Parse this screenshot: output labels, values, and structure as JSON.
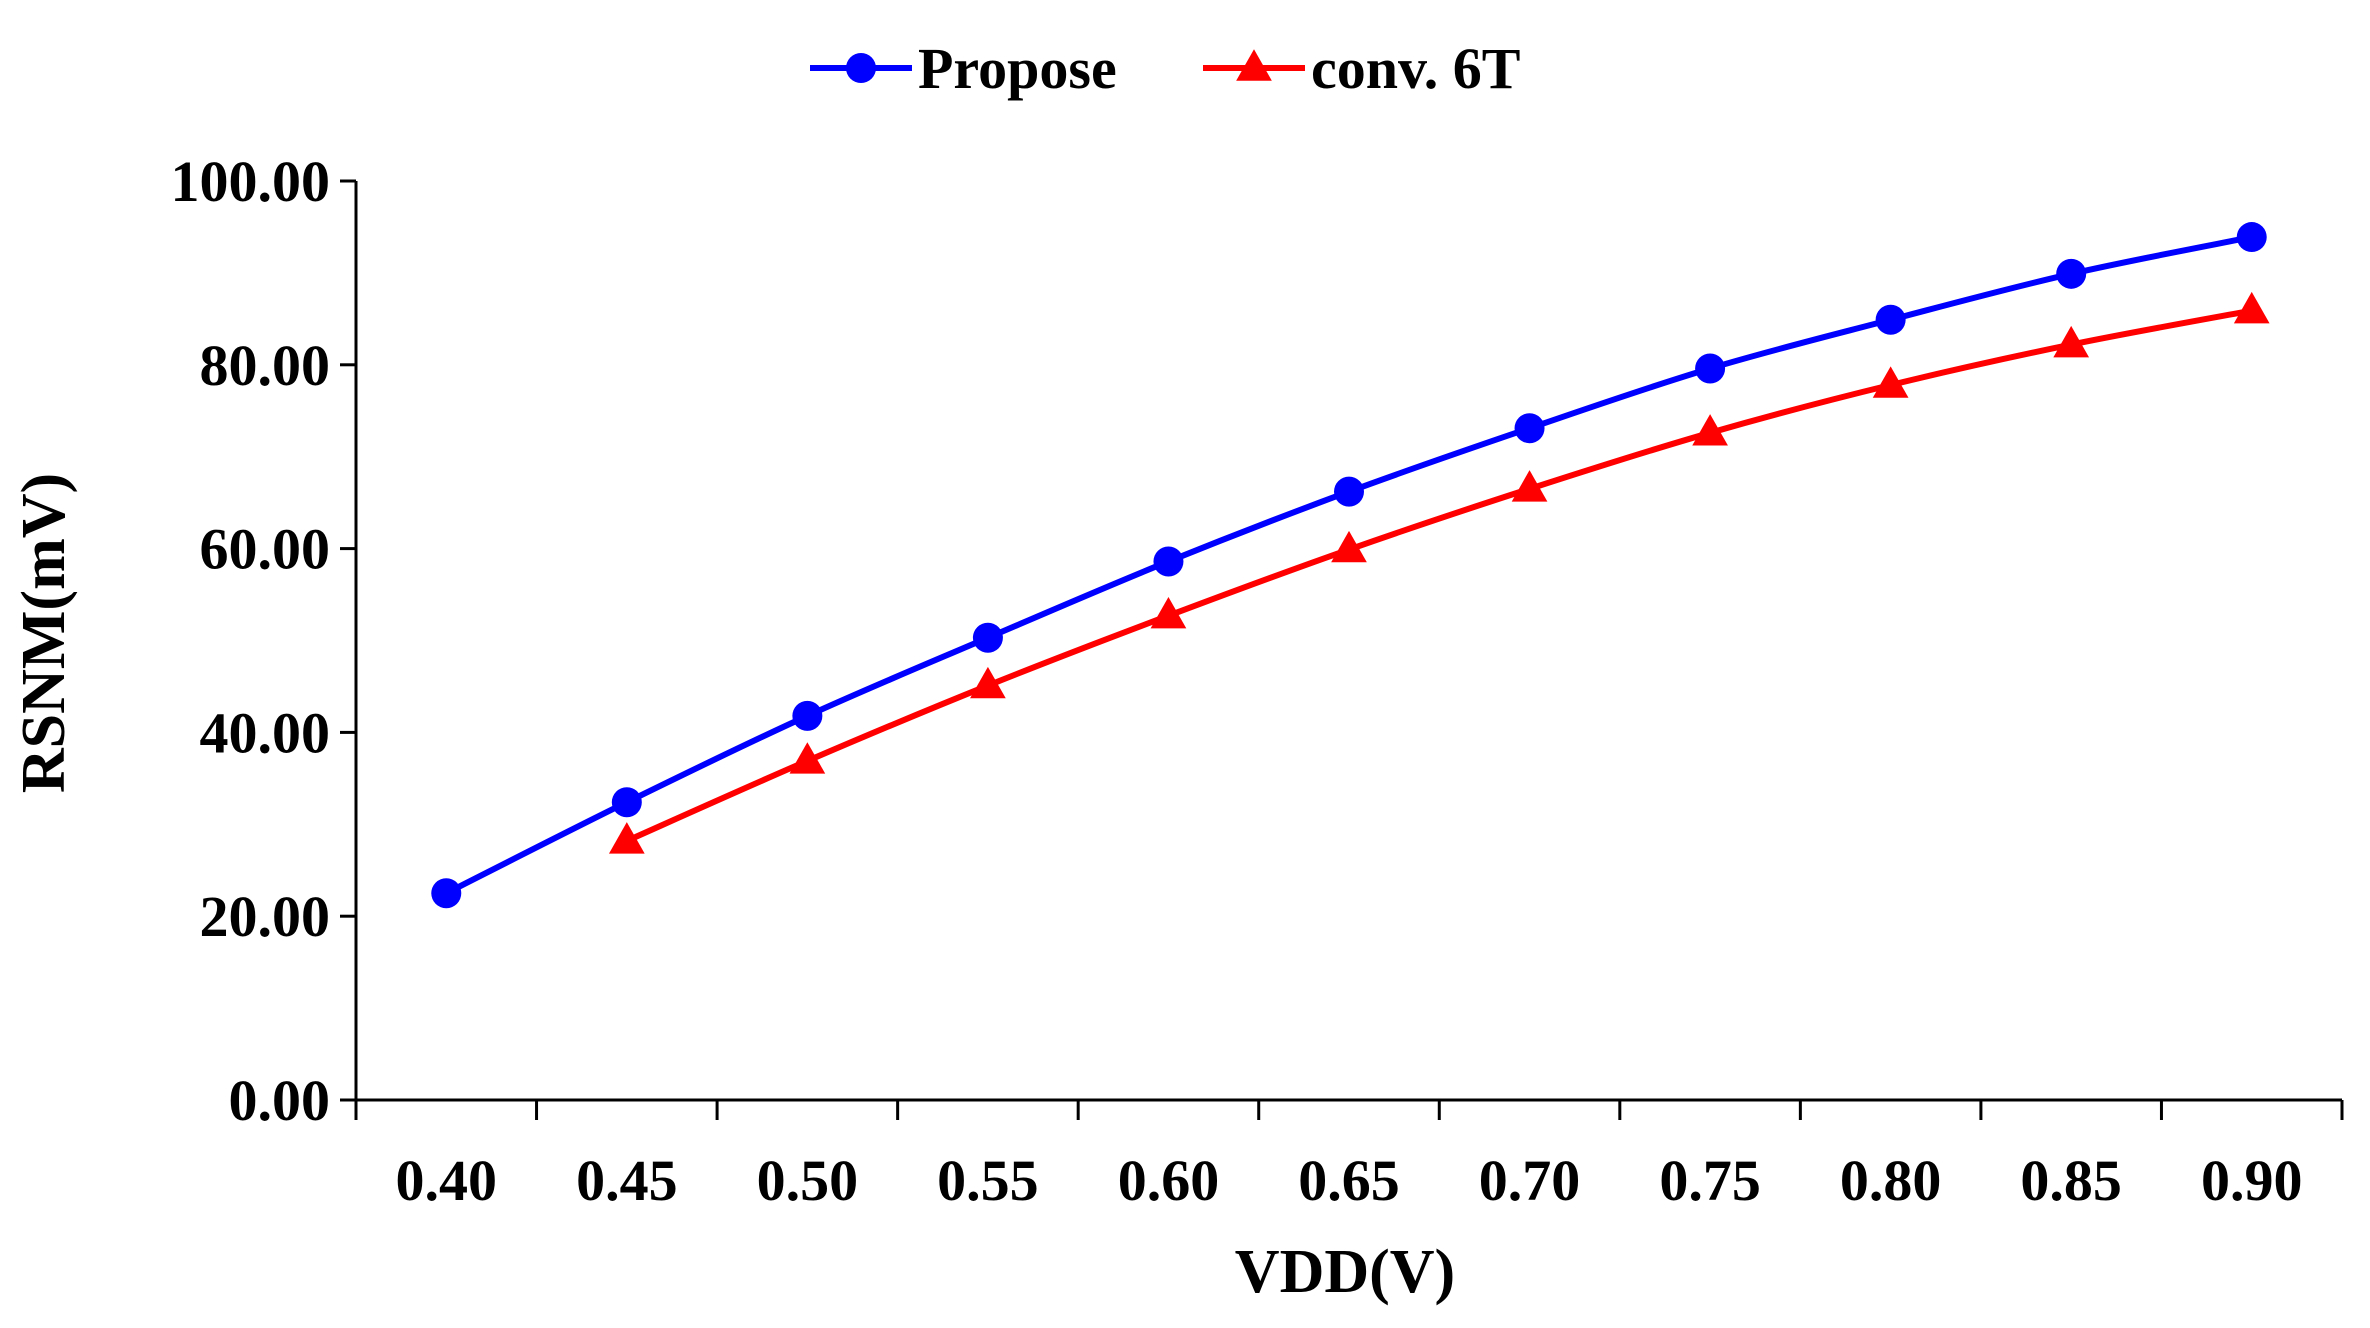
{
  "chart_data": {
    "type": "line",
    "title": "",
    "xlabel": "VDD(V)",
    "ylabel": "RSNM(mV)",
    "categories": [
      "0.40",
      "0.45",
      "0.50",
      "0.55",
      "0.60",
      "0.65",
      "0.70",
      "0.75",
      "0.80",
      "0.85",
      "0.90"
    ],
    "ylim": [
      0,
      100
    ],
    "yticks": [
      "0.00",
      "20.00",
      "40.00",
      "60.00",
      "80.00",
      "100.00"
    ],
    "ytick_values": [
      0,
      20,
      40,
      60,
      80,
      100
    ],
    "grid": false,
    "legend_position": "top-center",
    "series": [
      {
        "name": "Propose",
        "color": "#0000FF",
        "marker": "circle",
        "values": [
          22.5,
          32.4,
          41.8,
          50.3,
          58.6,
          66.2,
          73.1,
          79.6,
          84.9,
          89.9,
          93.9
        ]
      },
      {
        "name": "conv. 6T",
        "color": "#FF0000",
        "marker": "triangle",
        "values": [
          null,
          28.2,
          36.9,
          45.1,
          52.7,
          59.9,
          66.5,
          72.6,
          77.8,
          82.2,
          85.9
        ]
      }
    ]
  }
}
